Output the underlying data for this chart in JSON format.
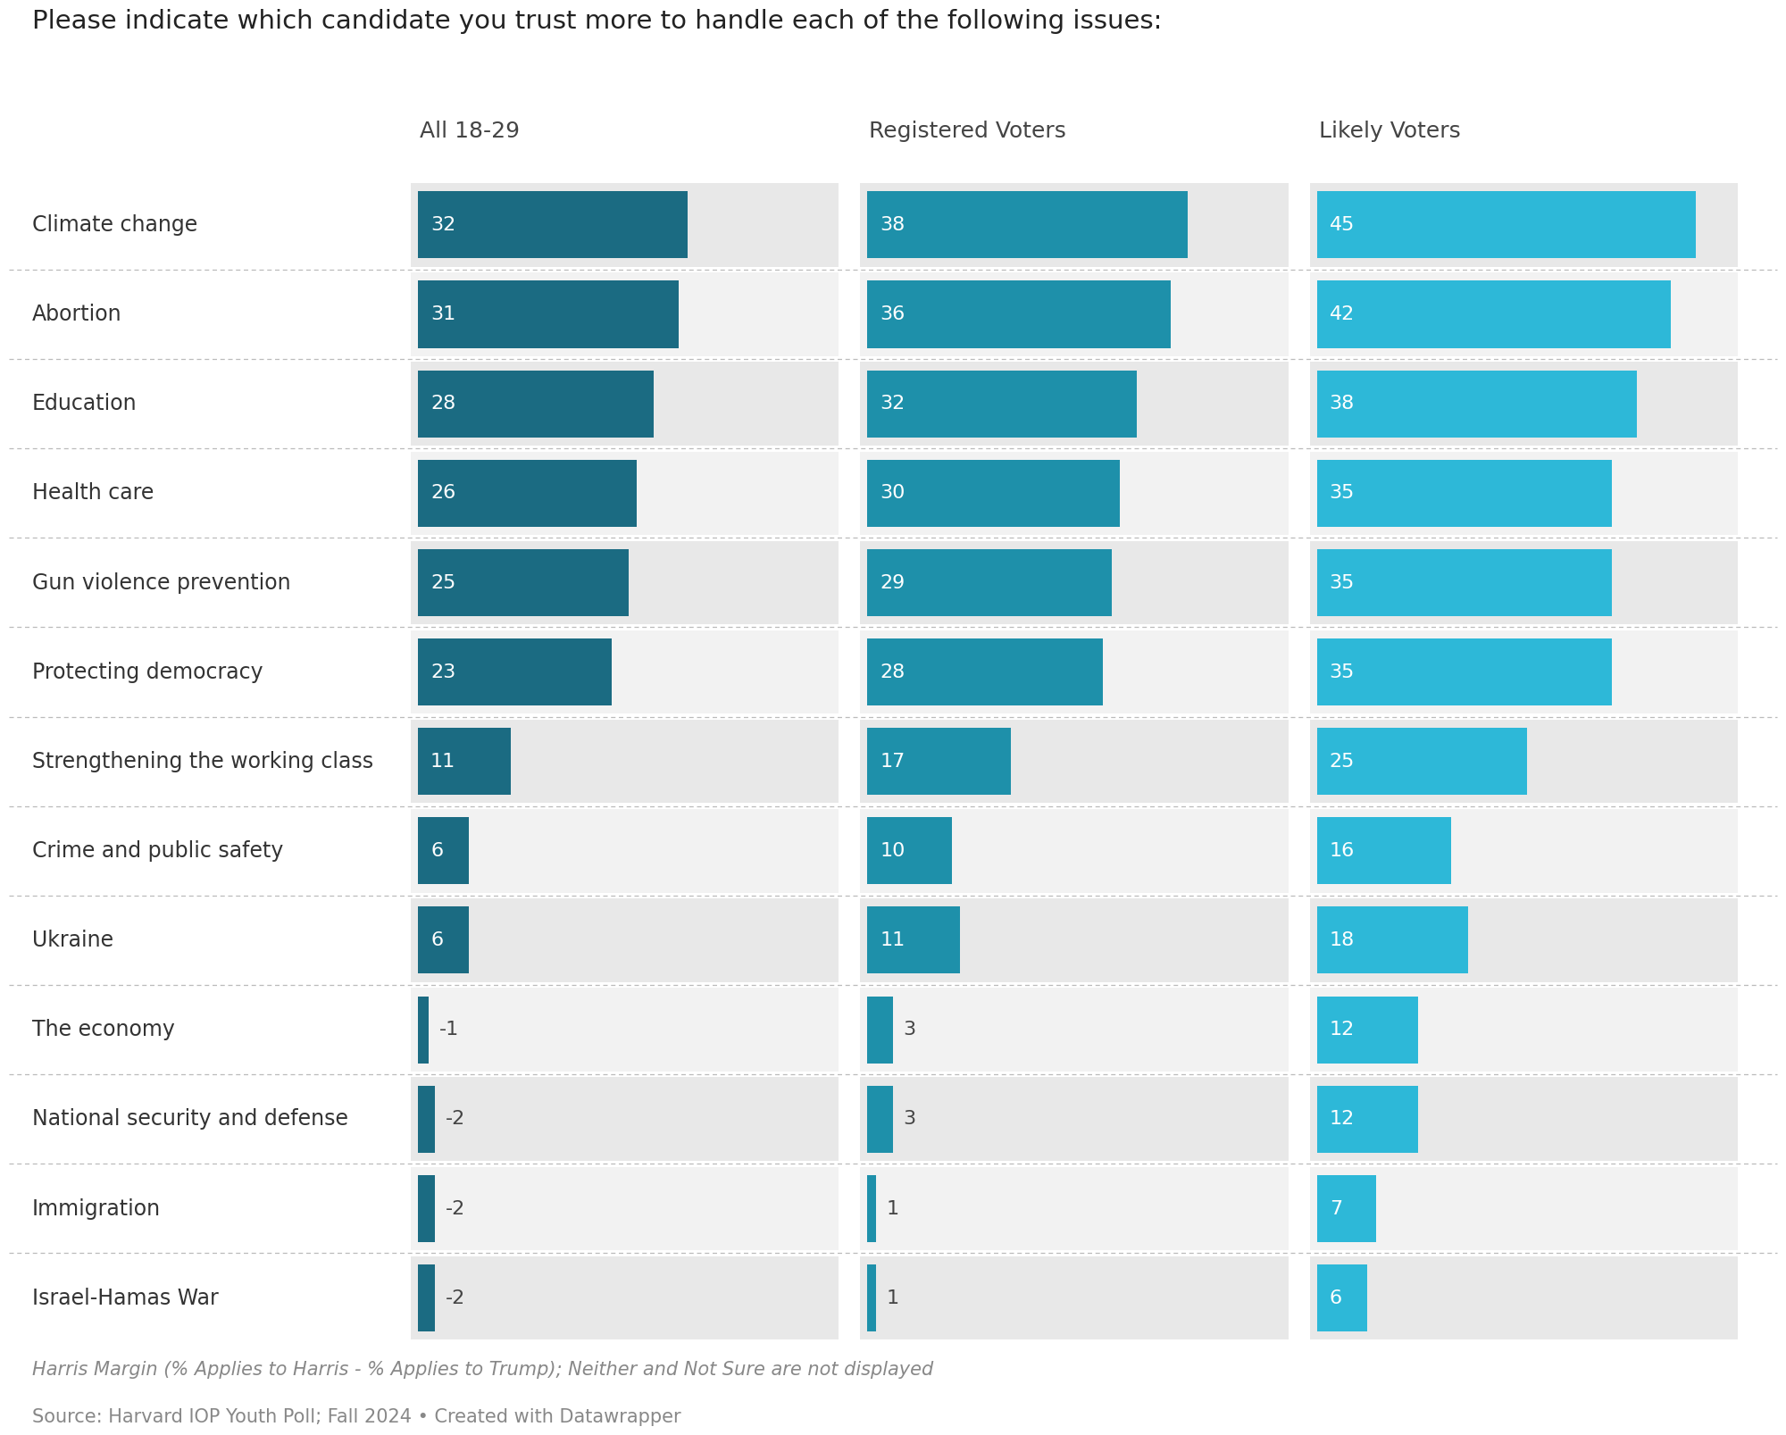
{
  "title": "Please indicate which candidate you trust more to handle each of the following issues:",
  "footnote1": "Harris Margin (% Applies to Harris - % Applies to Trump); Neither and Not Sure are not displayed",
  "footnote2": "Source: Harvard IOP Youth Poll; Fall 2024 • Created with Datawrapper",
  "categories": [
    "Climate change",
    "Abortion",
    "Education",
    "Health care",
    "Gun violence prevention",
    "Protecting democracy",
    "Strengthening the working class",
    "Crime and public safety",
    "Ukraine",
    "The economy",
    "National security and defense",
    "Immigration",
    "Israel-Hamas War"
  ],
  "col_labels": [
    "All 18-29",
    "Registered Voters",
    "Likely Voters"
  ],
  "all_voters": [
    32,
    31,
    28,
    26,
    25,
    23,
    11,
    6,
    6,
    -1,
    -2,
    -2,
    -2
  ],
  "registered_voters": [
    38,
    36,
    32,
    30,
    29,
    28,
    17,
    10,
    11,
    3,
    3,
    1,
    1
  ],
  "likely_voters": [
    45,
    42,
    38,
    35,
    35,
    35,
    25,
    16,
    18,
    12,
    12,
    7,
    6
  ],
  "color_all": "#1b6b82",
  "color_registered": "#1e90aa",
  "color_likely": "#2db8d8",
  "max_val": 50,
  "title_fontsize": 21,
  "label_fontsize": 17,
  "value_fontsize": 16,
  "col_label_fontsize": 18,
  "footnote_fontsize": 15
}
